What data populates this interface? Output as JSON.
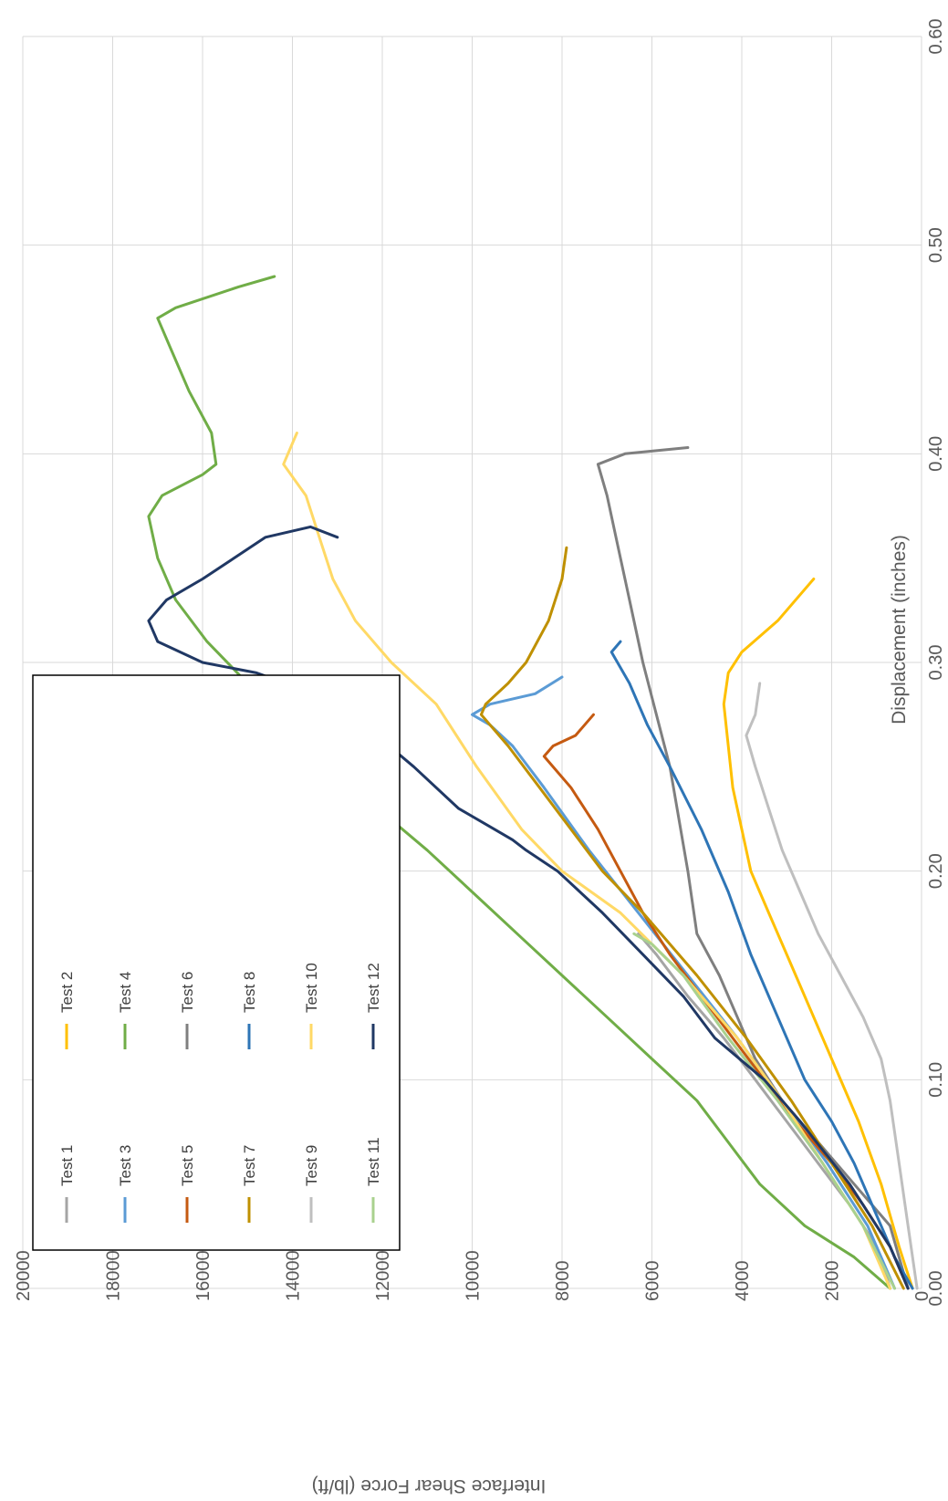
{
  "chart_data": {
    "type": "line",
    "title": "",
    "xlabel": "Displacement (inches)",
    "ylabel": "Interface Shear Force (lb/ft)",
    "xlim": [
      0,
      0.6
    ],
    "ylim": [
      0,
      20000
    ],
    "x_ticks": [
      "0.00",
      "0.10",
      "0.20",
      "0.30",
      "0.40",
      "0.50",
      "0.60"
    ],
    "y_ticks": [
      "0",
      "2000",
      "4000",
      "6000",
      "8000",
      "10000",
      "12000",
      "14000",
      "16000",
      "18000",
      "20000"
    ],
    "x_tick_values": [
      0,
      0.1,
      0.2,
      0.3,
      0.4,
      0.5,
      0.6
    ],
    "y_tick_values": [
      0,
      2000,
      4000,
      6000,
      8000,
      10000,
      12000,
      14000,
      16000,
      18000,
      20000
    ],
    "grid": true,
    "orientation": "rotated-90-clockwise",
    "legend_position": "lower-left",
    "series": [
      {
        "name": "Test 1",
        "color": "#a5a5a5",
        "points": [
          [
            0,
            700
          ],
          [
            0.02,
            1000
          ],
          [
            0.04,
            1600
          ],
          [
            0.06,
            2300
          ],
          [
            0.08,
            3000
          ],
          [
            0.1,
            3700
          ],
          [
            0.12,
            4400
          ],
          [
            0.14,
            5200
          ],
          [
            0.16,
            5900
          ],
          [
            0.17,
            6300
          ]
        ]
      },
      {
        "name": "Test 2",
        "color": "#ffc000",
        "points": [
          [
            0,
            200
          ],
          [
            0.02,
            500
          ],
          [
            0.05,
            900
          ],
          [
            0.08,
            1400
          ],
          [
            0.11,
            2000
          ],
          [
            0.14,
            2600
          ],
          [
            0.16,
            3000
          ],
          [
            0.18,
            3400
          ],
          [
            0.2,
            3800
          ],
          [
            0.22,
            4000
          ],
          [
            0.24,
            4200
          ],
          [
            0.26,
            4300
          ],
          [
            0.28,
            4400
          ],
          [
            0.295,
            4300
          ],
          [
            0.305,
            4000
          ],
          [
            0.32,
            3200
          ],
          [
            0.34,
            2400
          ]
        ]
      },
      {
        "name": "Test 3",
        "color": "#5b9bd5",
        "points": [
          [
            0,
            600
          ],
          [
            0.03,
            1200
          ],
          [
            0.06,
            2100
          ],
          [
            0.09,
            3100
          ],
          [
            0.12,
            4100
          ],
          [
            0.15,
            5200
          ],
          [
            0.18,
            6300
          ],
          [
            0.21,
            7400
          ],
          [
            0.24,
            8400
          ],
          [
            0.26,
            9100
          ],
          [
            0.27,
            9600
          ],
          [
            0.275,
            10000
          ],
          [
            0.28,
            9600
          ],
          [
            0.285,
            8600
          ],
          [
            0.293,
            8000
          ]
        ]
      },
      {
        "name": "Test 4",
        "color": "#70ad47",
        "points": [
          [
            0,
            700
          ],
          [
            0.015,
            1500
          ],
          [
            0.03,
            2600
          ],
          [
            0.05,
            3600
          ],
          [
            0.07,
            4300
          ],
          [
            0.09,
            5000
          ],
          [
            0.11,
            6000
          ],
          [
            0.13,
            7000
          ],
          [
            0.15,
            8000
          ],
          [
            0.17,
            9000
          ],
          [
            0.19,
            10000
          ],
          [
            0.21,
            11000
          ],
          [
            0.23,
            12100
          ],
          [
            0.25,
            13100
          ],
          [
            0.27,
            14100
          ],
          [
            0.29,
            15000
          ],
          [
            0.31,
            15900
          ],
          [
            0.33,
            16600
          ],
          [
            0.35,
            17000
          ],
          [
            0.37,
            17200
          ],
          [
            0.38,
            16900
          ],
          [
            0.39,
            16000
          ],
          [
            0.395,
            15700
          ],
          [
            0.41,
            15800
          ],
          [
            0.43,
            16300
          ],
          [
            0.45,
            16700
          ],
          [
            0.465,
            17000
          ],
          [
            0.47,
            16600
          ],
          [
            0.48,
            15200
          ],
          [
            0.485,
            14400
          ]
        ]
      },
      {
        "name": "Test 5",
        "color": "#c55a11",
        "points": [
          [
            0,
            300
          ],
          [
            0.02,
            700
          ],
          [
            0.04,
            1300
          ],
          [
            0.06,
            2000
          ],
          [
            0.08,
            2800
          ],
          [
            0.1,
            3500
          ],
          [
            0.12,
            4200
          ],
          [
            0.14,
            4900
          ],
          [
            0.16,
            5600
          ],
          [
            0.18,
            6200
          ],
          [
            0.2,
            6700
          ],
          [
            0.22,
            7200
          ],
          [
            0.24,
            7800
          ],
          [
            0.255,
            8400
          ],
          [
            0.26,
            8200
          ],
          [
            0.265,
            7700
          ],
          [
            0.275,
            7300
          ]
        ]
      },
      {
        "name": "Test 6",
        "color": "#7f7f7f",
        "points": [
          [
            0,
            300
          ],
          [
            0.03,
            700
          ],
          [
            0.05,
            1500
          ],
          [
            0.07,
            2300
          ],
          [
            0.09,
            3100
          ],
          [
            0.11,
            3700
          ],
          [
            0.13,
            4100
          ],
          [
            0.15,
            4500
          ],
          [
            0.17,
            5000
          ],
          [
            0.2,
            5200
          ],
          [
            0.25,
            5600
          ],
          [
            0.3,
            6200
          ],
          [
            0.33,
            6500
          ],
          [
            0.36,
            6800
          ],
          [
            0.38,
            7000
          ],
          [
            0.395,
            7200
          ],
          [
            0.4,
            6600
          ],
          [
            0.403,
            5200
          ]
        ]
      },
      {
        "name": "Test 7",
        "color": "#bf9000",
        "points": [
          [
            0,
            400
          ],
          [
            0.03,
            1100
          ],
          [
            0.06,
            2000
          ],
          [
            0.09,
            2900
          ],
          [
            0.12,
            3900
          ],
          [
            0.15,
            5000
          ],
          [
            0.18,
            6200
          ],
          [
            0.2,
            7100
          ],
          [
            0.22,
            7800
          ],
          [
            0.24,
            8500
          ],
          [
            0.26,
            9200
          ],
          [
            0.275,
            9800
          ],
          [
            0.28,
            9700
          ],
          [
            0.29,
            9200
          ],
          [
            0.3,
            8800
          ],
          [
            0.32,
            8300
          ],
          [
            0.34,
            8000
          ],
          [
            0.355,
            7900
          ]
        ]
      },
      {
        "name": "Test 8",
        "color": "#2e75b6",
        "points": [
          [
            0,
            200
          ],
          [
            0.015,
            600
          ],
          [
            0.035,
            1000
          ],
          [
            0.06,
            1500
          ],
          [
            0.08,
            2000
          ],
          [
            0.1,
            2600
          ],
          [
            0.13,
            3200
          ],
          [
            0.16,
            3800
          ],
          [
            0.19,
            4300
          ],
          [
            0.22,
            4900
          ],
          [
            0.25,
            5600
          ],
          [
            0.27,
            6100
          ],
          [
            0.29,
            6500
          ],
          [
            0.305,
            6900
          ],
          [
            0.31,
            6700
          ]
        ]
      },
      {
        "name": "Test 9",
        "color": "#bfbfbf",
        "points": [
          [
            0,
            100
          ],
          [
            0.03,
            300
          ],
          [
            0.06,
            500
          ],
          [
            0.09,
            700
          ],
          [
            0.11,
            900
          ],
          [
            0.13,
            1300
          ],
          [
            0.15,
            1800
          ],
          [
            0.17,
            2300
          ],
          [
            0.19,
            2700
          ],
          [
            0.21,
            3100
          ],
          [
            0.23,
            3400
          ],
          [
            0.25,
            3700
          ],
          [
            0.265,
            3900
          ],
          [
            0.275,
            3700
          ],
          [
            0.29,
            3600
          ]
        ]
      },
      {
        "name": "Test 10",
        "color": "#ffd966",
        "points": [
          [
            0,
            700
          ],
          [
            0.03,
            1300
          ],
          [
            0.06,
            2200
          ],
          [
            0.09,
            3100
          ],
          [
            0.12,
            4100
          ],
          [
            0.15,
            5300
          ],
          [
            0.18,
            6700
          ],
          [
            0.2,
            8000
          ],
          [
            0.22,
            8900
          ],
          [
            0.25,
            9900
          ],
          [
            0.28,
            10800
          ],
          [
            0.3,
            11800
          ],
          [
            0.32,
            12600
          ],
          [
            0.34,
            13100
          ],
          [
            0.36,
            13400
          ],
          [
            0.38,
            13700
          ],
          [
            0.395,
            14200
          ],
          [
            0.405,
            14000
          ],
          [
            0.41,
            13900
          ]
        ]
      },
      {
        "name": "Test 11",
        "color": "#a9d18e",
        "points": [
          [
            0,
            600
          ],
          [
            0.03,
            1300
          ],
          [
            0.06,
            2200
          ],
          [
            0.09,
            3200
          ],
          [
            0.12,
            4300
          ],
          [
            0.15,
            5300
          ],
          [
            0.165,
            6000
          ],
          [
            0.17,
            6400
          ]
        ]
      },
      {
        "name": "Test 12",
        "color": "#203864",
        "points": [
          [
            0,
            300
          ],
          [
            0.02,
            700
          ],
          [
            0.05,
            1600
          ],
          [
            0.08,
            2700
          ],
          [
            0.1,
            3500
          ],
          [
            0.12,
            4600
          ],
          [
            0.14,
            5300
          ],
          [
            0.16,
            6200
          ],
          [
            0.18,
            7100
          ],
          [
            0.2,
            8100
          ],
          [
            0.21,
            8800
          ],
          [
            0.215,
            9100
          ],
          [
            0.22,
            9500
          ],
          [
            0.23,
            10300
          ],
          [
            0.25,
            11300
          ],
          [
            0.27,
            12400
          ],
          [
            0.285,
            13500
          ],
          [
            0.295,
            14800
          ],
          [
            0.3,
            16000
          ],
          [
            0.31,
            17000
          ],
          [
            0.32,
            17200
          ],
          [
            0.33,
            16800
          ],
          [
            0.34,
            16000
          ],
          [
            0.36,
            14600
          ],
          [
            0.365,
            13600
          ],
          [
            0.36,
            13000
          ]
        ]
      }
    ]
  }
}
